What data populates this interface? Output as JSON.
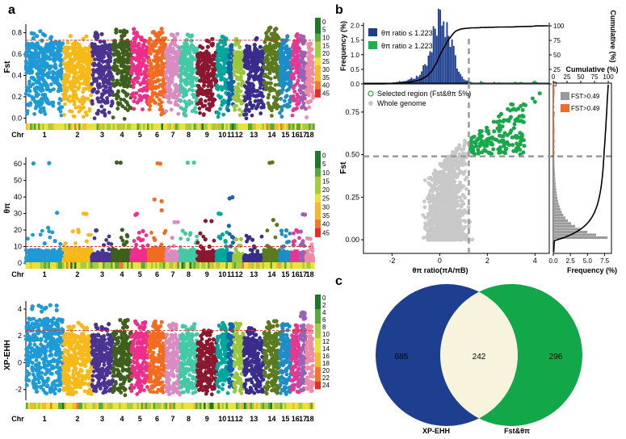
{
  "figure": {
    "panel_labels": [
      "a",
      "b",
      "c"
    ]
  },
  "colors": {
    "chr": [
      "#1f9ad6",
      "#f6b917",
      "#4b3391",
      "#3f5f1d",
      "#ee2e8b",
      "#f36b1f",
      "#d98cc2",
      "#43c9a6",
      "#8b1730",
      "#00a79d",
      "#1565a9",
      "#9bc53d",
      "#3a2c8c",
      "#5b7a1e",
      "#1d8dc7",
      "#e53795",
      "#9b62b3",
      "#f08ba5"
    ],
    "threshold": "#e0302a",
    "selected": "#18a84b",
    "whole_genome": "#c8c8c8",
    "dashed_guide": "#9a9a9a",
    "hist_low": "#1e3f8f",
    "hist_high": "#1bb24b",
    "fst_low": "#9b9b9b",
    "fst_high": "#f06a2a",
    "venn_left": "#1e3f8f",
    "venn_right": "#12a84a",
    "venn_overlap": "#f8f3dc",
    "density_scale": [
      "#1a7a2a",
      "#5aa83a",
      "#a6cc3c",
      "#e8e23a",
      "#f5b82e",
      "#f07a28",
      "#e0302a"
    ]
  },
  "chart_data": [
    {
      "id": "fst-manhattan",
      "type": "scatter",
      "ylabel": "Fst",
      "ylim": [
        -0.05,
        0.88
      ],
      "yticks": [
        "0.0",
        "0.2",
        "0.4",
        "0.6",
        "0.8"
      ],
      "ytick_values": [
        0,
        0.2,
        0.4,
        0.6,
        0.8
      ],
      "threshold": 0.73,
      "xlabel_prefix": "Chr",
      "chromosomes": [
        "1",
        "2",
        "3",
        "4",
        "5",
        "6",
        "7",
        "8",
        "9",
        "10",
        "11",
        "12",
        "13",
        "14",
        "15",
        "16",
        "17",
        "18"
      ],
      "chr_max": [
        0.82,
        0.78,
        0.8,
        0.83,
        0.84,
        0.84,
        0.79,
        0.8,
        0.74,
        0.8,
        0.7,
        0.74,
        0.76,
        0.86,
        0.78,
        0.8,
        0.77,
        0.7
      ],
      "chr_body": [
        0.72,
        0.68,
        0.7,
        0.74,
        0.73,
        0.76,
        0.67,
        0.68,
        0.62,
        0.7,
        0.6,
        0.64,
        0.65,
        0.78,
        0.66,
        0.68,
        0.64,
        0.6
      ],
      "density_legend": [
        "0",
        "5",
        "10",
        "15",
        "20",
        "25",
        "30",
        "35",
        "40",
        "45"
      ]
    },
    {
      "id": "pi-manhattan",
      "type": "scatter",
      "ylabel": "θπ",
      "ylim": [
        -1,
        64
      ],
      "yticks": [
        "0",
        "10",
        "20",
        "30",
        "40",
        "50",
        "60"
      ],
      "ytick_values": [
        0,
        10,
        20,
        30,
        40,
        50,
        60
      ],
      "threshold": 10,
      "xlabel_prefix": "Chr",
      "chromosomes": [
        "1",
        "2",
        "3",
        "4",
        "5",
        "6",
        "7",
        "8",
        "9",
        "10",
        "11",
        "12",
        "13",
        "14",
        "15",
        "16",
        "17",
        "18"
      ],
      "chr_max": [
        61,
        30,
        20,
        61,
        30,
        61,
        25,
        61,
        26,
        30,
        40,
        15,
        15,
        61,
        20,
        20,
        30,
        15
      ],
      "chr_body": [
        8,
        9,
        6,
        8,
        8,
        9,
        7,
        8,
        7,
        8,
        6,
        5,
        5,
        8,
        7,
        6,
        7,
        5
      ],
      "density_legend": [
        "0",
        "5",
        "10",
        "15",
        "20",
        "25",
        "30",
        "35",
        "40",
        "45"
      ]
    },
    {
      "id": "xpehh-manhattan",
      "type": "scatter",
      "ylabel": "XP-EHH",
      "ylim": [
        -2.8,
        4.6
      ],
      "yticks": [
        "-2",
        "0",
        "2",
        "4"
      ],
      "ytick_values": [
        -2,
        0,
        2,
        4
      ],
      "threshold": 2.4,
      "xlabel_prefix": "Chr",
      "chromosomes": [
        "1",
        "2",
        "3",
        "4",
        "5",
        "6",
        "7",
        "8",
        "9",
        "10",
        "11",
        "12",
        "13",
        "14",
        "15",
        "16",
        "17",
        "18"
      ],
      "chr_max": [
        4.3,
        3.0,
        2.9,
        3.2,
        3.1,
        3.1,
        3.0,
        3.0,
        2.5,
        3.0,
        2.9,
        3.0,
        2.6,
        3.1,
        2.9,
        2.8,
        3.8,
        2.8
      ],
      "chr_min": [
        -2.3,
        -2.4,
        -2.3,
        -2.5,
        -2.4,
        -2.3,
        -2.4,
        -2.3,
        -2.4,
        -2.4,
        -2.2,
        -2.3,
        -2.3,
        -2.5,
        -2.4,
        -2.3,
        -2.3,
        -2.2
      ],
      "density_legend": [
        "0",
        "2",
        "4",
        "6",
        "8",
        "10",
        "12",
        "14",
        "16",
        "18",
        "20",
        "22",
        "24"
      ]
    },
    {
      "id": "fst-vs-pi-ratio",
      "type": "scatter",
      "xlabel": "θπ ratio(πA/πB)",
      "ylabel": "Fst",
      "xlim": [
        -3.2,
        4.6
      ],
      "ylim": [
        -0.08,
        0.92
      ],
      "xticks": [
        "-2",
        "0",
        "2",
        "4"
      ],
      "xtick_values": [
        -2,
        0,
        2,
        4
      ],
      "yticks": [
        "0.00",
        "0.25",
        "0.50",
        "0.75"
      ],
      "ytick_values": [
        0,
        0.25,
        0.5,
        0.75
      ],
      "x_cutoff": 1.223,
      "y_cutoff": 0.49,
      "legend": [
        "Selected region (Fst&θπ 5%)",
        "Whole genome"
      ]
    },
    {
      "id": "pi-ratio-histogram",
      "type": "bar",
      "ylabel": "Frequency (%)",
      "ylabel2": "Cumulative (%)",
      "yticks": [
        "0.0",
        "0.5",
        "1.0",
        "1.5",
        "2.0"
      ],
      "ytick_values": [
        0,
        0.5,
        1.0,
        1.5,
        2.0
      ],
      "y2ticks": [
        "0",
        "25",
        "50",
        "75",
        "100"
      ],
      "y2tick_values": [
        0,
        25,
        50,
        75,
        100
      ],
      "legend": [
        "θπ ratio ≤ 1.223",
        "θπ ratio ≥ 1.223"
      ],
      "cutoff": 1.223
    },
    {
      "id": "fst-histogram",
      "type": "bar",
      "xlabel": "Frequency (%)",
      "xlabel2": "Cumulative (%)",
      "xticks": [
        "0.0",
        "2.5",
        "5.0",
        "7.5"
      ],
      "xtick_values": [
        0,
        2.5,
        5.0,
        7.5
      ],
      "x2ticks": [
        "0",
        "25",
        "50",
        "75",
        "100"
      ],
      "x2tick_values": [
        0,
        25,
        50,
        75,
        100
      ],
      "legend": [
        "FST>0.49",
        "FST>0.49"
      ],
      "cutoff": 0.49
    },
    {
      "id": "venn",
      "type": "venn",
      "sets": [
        "XP-EHH",
        "Fst&θπ"
      ],
      "left_only": "685",
      "overlap": "242",
      "right_only": "296"
    }
  ]
}
